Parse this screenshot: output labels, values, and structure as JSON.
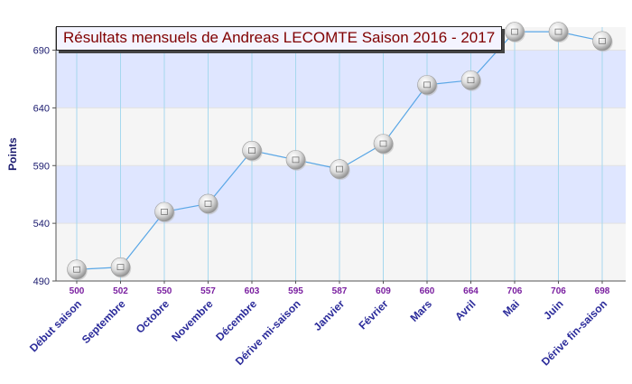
{
  "chart_data": {
    "type": "line",
    "title": "Résultats mensuels de Andreas LECOMTE Saison 2016 - 2017",
    "ylabel": "Points",
    "xlabel": "",
    "categories": [
      "Début saison",
      "Septembre",
      "Octobre",
      "Novembre",
      "Décembre",
      "Dérive mi-saison",
      "Janvier",
      "Février",
      "Mars",
      "Avril",
      "Mai",
      "Juin",
      "Dérive fin-saison"
    ],
    "values": [
      500,
      502,
      550,
      557,
      603,
      595,
      587,
      609,
      660,
      664,
      706,
      706,
      698
    ],
    "data_labels": [
      "500",
      "502",
      "550",
      "557",
      "603",
      "595",
      "587",
      "609",
      "660",
      "664",
      "706",
      "706",
      "698"
    ],
    "yticks": [
      490,
      540,
      590,
      640,
      690
    ],
    "ylim": [
      490,
      710
    ],
    "grid": true,
    "legend": "none",
    "colors": {
      "line": "#5aa7e6",
      "band_blue": "#dfe6ff",
      "band_gray": "#f5f5f5",
      "title_text": "#800000",
      "tick_text": "#1a1a6e",
      "category_text": "#2b2b9a",
      "data_label_text": "#7a1fa0",
      "grid_vertical": "#a6d8ee",
      "marker_fill": "#e4e4e4"
    }
  }
}
